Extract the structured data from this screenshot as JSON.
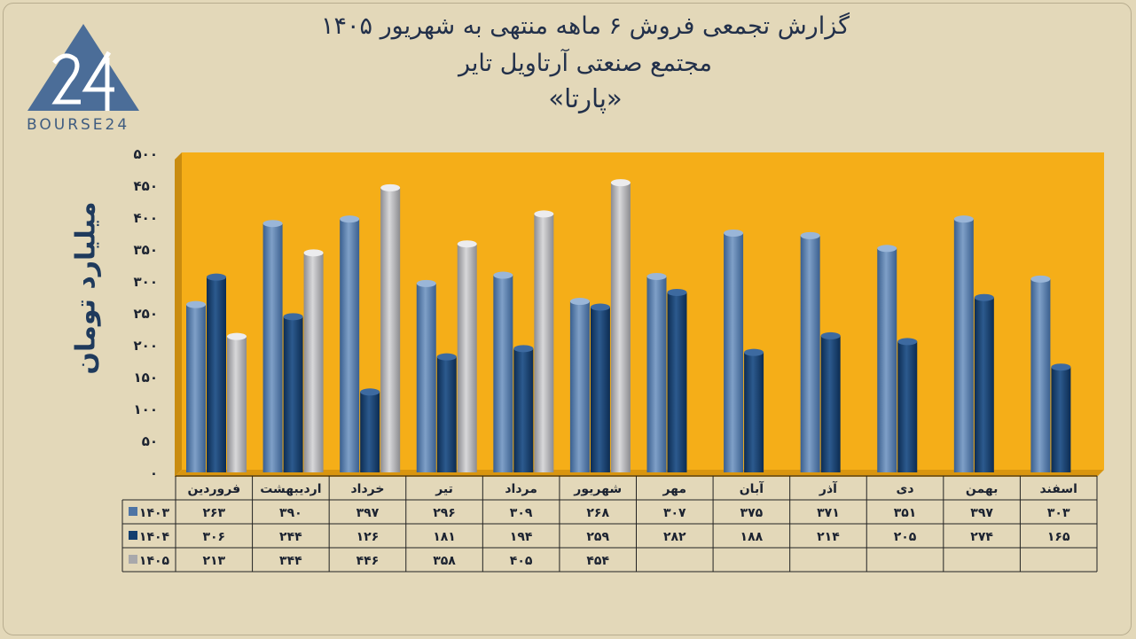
{
  "title": {
    "line1": "گزارش تجمعی فروش ۶ ماهه منتهی به شهریور ۱۴۰۵",
    "line2": "مجتمع صنعتی آرتاویل تایر",
    "line3": "«پارتا»"
  },
  "logo": {
    "mark": "24",
    "text": "BOURSE24"
  },
  "colors": {
    "background": "#e3d8b9",
    "plot": "#f5ae18",
    "s1403": "#4e74a4",
    "s1404": "#133e6e",
    "s1405": "#a8a8ab"
  },
  "chart_data": {
    "type": "bar",
    "ylabel": "میلیارد تومان",
    "ylim": [
      0,
      500
    ],
    "yticks": [
      "۰",
      "۵۰",
      "۱۰۰",
      "۱۵۰",
      "۲۰۰",
      "۲۵۰",
      "۳۰۰",
      "۳۵۰",
      "۴۰۰",
      "۴۵۰",
      "۵۰۰"
    ],
    "categories": [
      "فروردین",
      "اردیبهشت",
      "خرداد",
      "تیر",
      "مرداد",
      "شهریور",
      "مهر",
      "آبان",
      "آذر",
      "دی",
      "بهمن",
      "اسفند"
    ],
    "series": [
      {
        "name": "۱۴۰۳",
        "values": [
          263,
          390,
          397,
          296,
          309,
          268,
          307,
          375,
          371,
          351,
          397,
          303
        ],
        "labels": [
          "۲۶۳",
          "۳۹۰",
          "۳۹۷",
          "۲۹۶",
          "۳۰۹",
          "۲۶۸",
          "۳۰۷",
          "۳۷۵",
          "۳۷۱",
          "۳۵۱",
          "۳۹۷",
          "۳۰۳"
        ]
      },
      {
        "name": "۱۴۰۴",
        "values": [
          306,
          244,
          126,
          181,
          194,
          259,
          282,
          188,
          214,
          205,
          274,
          165
        ],
        "labels": [
          "۳۰۶",
          "۲۴۴",
          "۱۲۶",
          "۱۸۱",
          "۱۹۴",
          "۲۵۹",
          "۲۸۲",
          "۱۸۸",
          "۲۱۴",
          "۲۰۵",
          "۲۷۴",
          "۱۶۵"
        ]
      },
      {
        "name": "۱۴۰۵",
        "values": [
          213,
          344,
          446,
          358,
          405,
          454,
          null,
          null,
          null,
          null,
          null,
          null
        ],
        "labels": [
          "۲۱۳",
          "۳۴۴",
          "۴۴۶",
          "۳۵۸",
          "۴۰۵",
          "۴۵۴",
          "",
          "",
          "",
          "",
          "",
          ""
        ]
      }
    ],
    "grid": false,
    "legend": "data table"
  }
}
